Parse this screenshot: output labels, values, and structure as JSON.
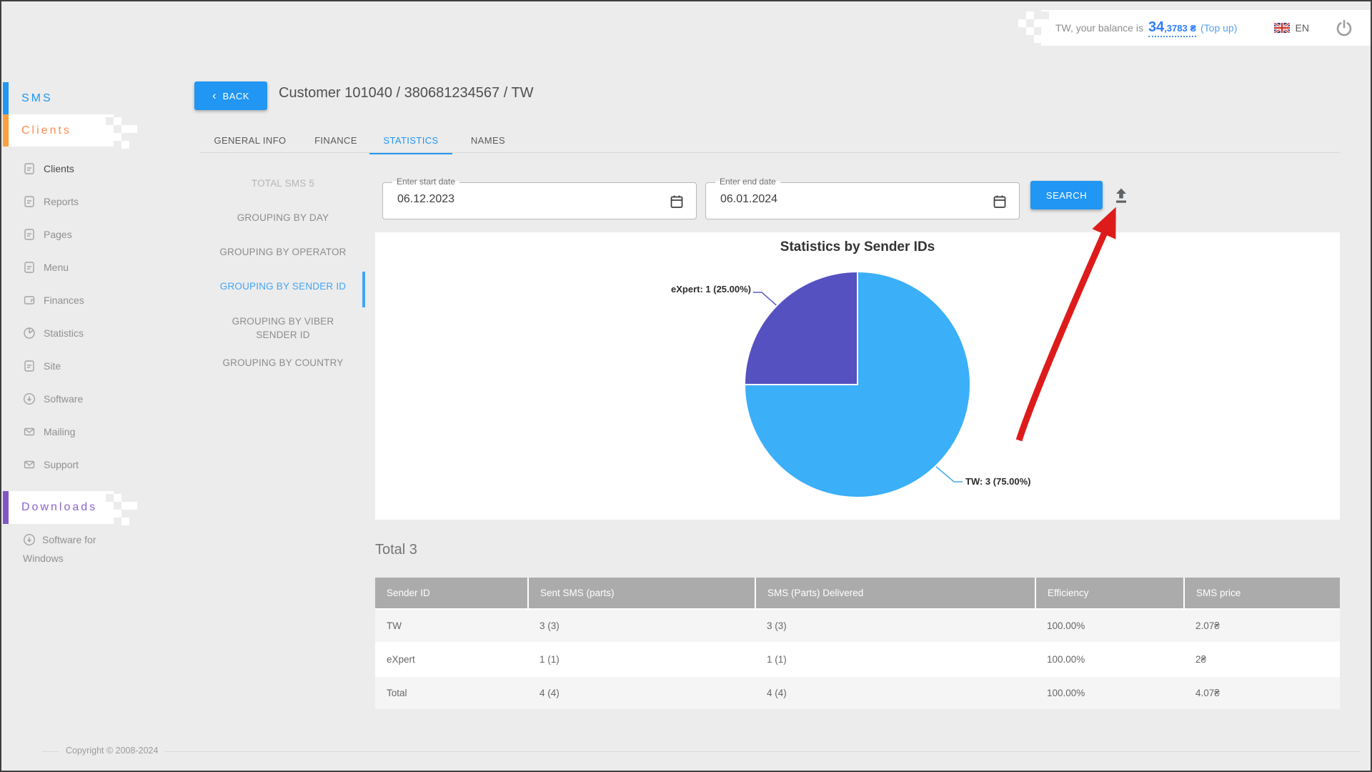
{
  "top_bar": {
    "balance_prefix": "TW, your balance is",
    "balance_main": "34",
    "balance_fraction": ",3783 ₴",
    "top_up": "(Top up)",
    "language": "EN"
  },
  "sidebar": {
    "sms_label": "SMS",
    "clients_label": "Clients",
    "downloads_label": "Downloads",
    "items": [
      {
        "label": "Clients",
        "icon": "document-icon"
      },
      {
        "label": "Reports",
        "icon": "document-icon"
      },
      {
        "label": "Pages",
        "icon": "document-icon"
      },
      {
        "label": "Menu",
        "icon": "document-icon"
      },
      {
        "label": "Finances",
        "icon": "wallet-icon"
      },
      {
        "label": "Statistics",
        "icon": "pie-chart-icon"
      },
      {
        "label": "Site",
        "icon": "document-icon"
      },
      {
        "label": "Software",
        "icon": "download-icon"
      },
      {
        "label": "Mailing",
        "icon": "envelope-icon"
      },
      {
        "label": "Support",
        "icon": "envelope-icon"
      }
    ],
    "downloads_item": {
      "label": "Software for Windows",
      "icon": "download-icon"
    }
  },
  "header": {
    "back_chevron": "‹",
    "back_label": "BACK",
    "title": "Customer 101040 / 380681234567 / TW"
  },
  "tabs": [
    {
      "label": "GENERAL INFO",
      "active": false
    },
    {
      "label": "FINANCE",
      "active": false
    },
    {
      "label": "STATISTICS",
      "active": true
    },
    {
      "label": "NAMES",
      "active": false
    }
  ],
  "subnav": {
    "total_label": "TOTAL SMS 5",
    "items": [
      "GROUPING BY DAY",
      "GROUPING BY OPERATOR",
      "GROUPING BY SENDER ID",
      "GROUPING BY VIBER SENDER ID",
      "GROUPING BY COUNTRY"
    ],
    "active_index": 2
  },
  "filters": {
    "start_date": {
      "label": "Enter start date",
      "value": "06.12.2023"
    },
    "end_date": {
      "label": "Enter end date",
      "value": "06.01.2024"
    },
    "search_label": "SEARCH"
  },
  "chart_data": {
    "type": "pie",
    "title": "Statistics by Sender IDs",
    "total": 4,
    "slices": [
      {
        "label": "TW",
        "value": 3,
        "percent": "75.00%",
        "color": "#3BAFF8",
        "annotation": "TW: 3 (75.00%)"
      },
      {
        "label": "eXpert",
        "value": 1,
        "percent": "25.00%",
        "color": "#5551C1",
        "annotation": "eXpert: 1 (25.00%)"
      }
    ],
    "start_angle_deg": -90,
    "direction": "clockwise",
    "legend_position": "callout-labels"
  },
  "summary": {
    "total_label": "Total 3"
  },
  "table": {
    "headers": [
      "Sender ID",
      "Sent SMS (parts)",
      "SMS (Parts) Delivered",
      "Efficiency",
      "SMS price"
    ],
    "rows": [
      [
        "TW",
        "3 (3)",
        "3 (3)",
        "100.00%",
        "2.07₴"
      ],
      [
        "eXpert",
        "1 (1)",
        "1 (1)",
        "100.00%",
        "2₴"
      ],
      [
        "Total",
        "4 (4)",
        "4 (4)",
        "100.00%",
        "4.07₴"
      ]
    ]
  },
  "footer": {
    "copyright": "Copyright © 2008-2024"
  },
  "colors": {
    "accent_blue": "#2196F3",
    "orange": "#FF8A50",
    "purple": "#8A63C9",
    "pie_blue": "#3BAFF8",
    "pie_purple": "#5551C1",
    "annotation_red": "#DE1B1B"
  }
}
